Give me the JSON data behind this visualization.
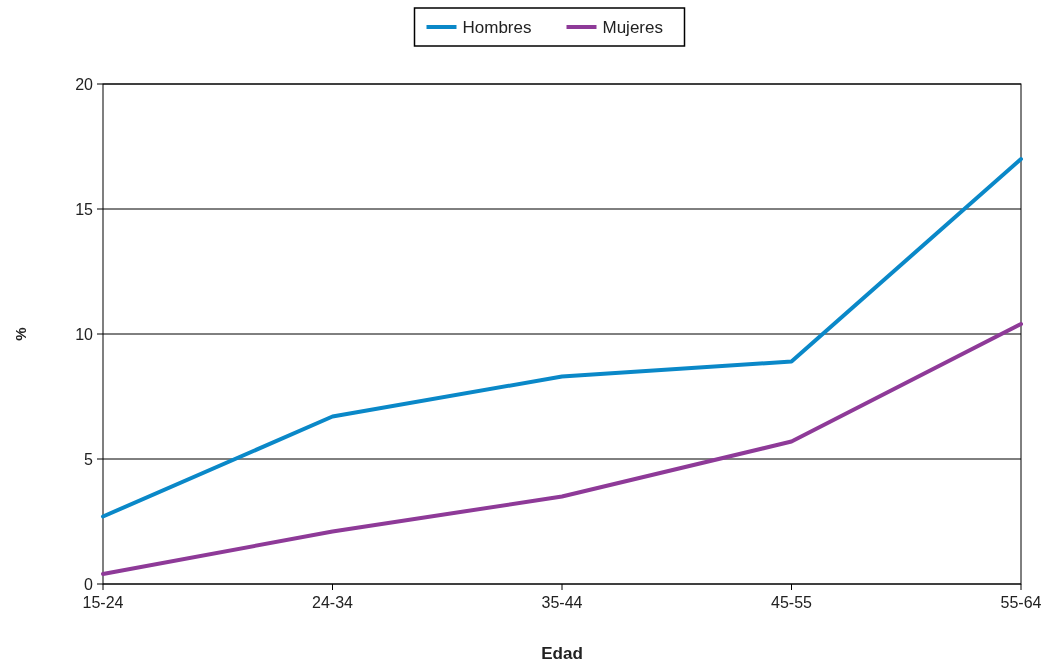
{
  "chart_data": {
    "type": "line",
    "xlabel": "Edad",
    "ylabel": "%",
    "categories": [
      "15-24",
      "24-34",
      "35-44",
      "45-55",
      "55-64"
    ],
    "series": [
      {
        "name": "Hombres",
        "color": "#0a88c8",
        "values": [
          2.7,
          6.7,
          8.3,
          8.9,
          17.0
        ]
      },
      {
        "name": "Mujeres",
        "color": "#8e3a98",
        "values": [
          0.4,
          2.1,
          3.5,
          5.7,
          10.4
        ]
      }
    ],
    "ylim": [
      0,
      20
    ],
    "yticks": [
      0,
      5,
      10,
      15,
      20
    ],
    "grid": "y",
    "legend": "top",
    "marker": "none",
    "line_style": "solid"
  }
}
